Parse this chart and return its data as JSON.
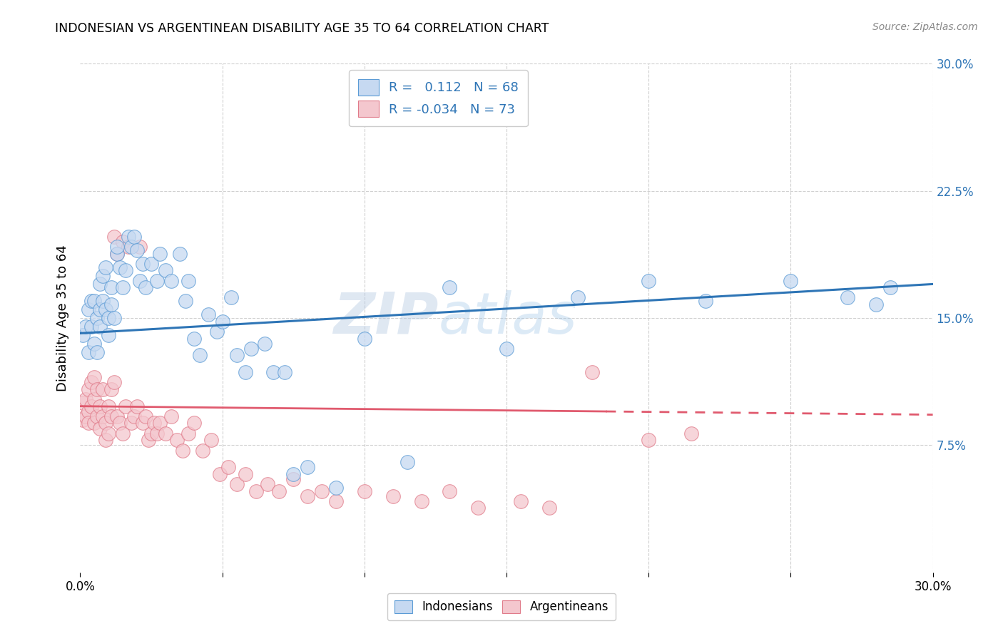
{
  "title": "INDONESIAN VS ARGENTINEAN DISABILITY AGE 35 TO 64 CORRELATION CHART",
  "source": "Source: ZipAtlas.com",
  "ylabel": "Disability Age 35 to 64",
  "xlim": [
    0.0,
    0.3
  ],
  "ylim": [
    0.0,
    0.3
  ],
  "yticks_right": [
    0.075,
    0.15,
    0.225,
    0.3
  ],
  "ytick_labels_right": [
    "7.5%",
    "15.0%",
    "22.5%",
    "30.0%"
  ],
  "watermark": "ZIPatlas",
  "blue_fill": "#c6d9f1",
  "blue_edge": "#5b9bd5",
  "pink_fill": "#f4c7ce",
  "pink_edge": "#e07b8a",
  "blue_line_color": "#2e75b6",
  "pink_line_color": "#e05a6e",
  "indonesian_x": [
    0.001,
    0.002,
    0.003,
    0.003,
    0.004,
    0.004,
    0.005,
    0.005,
    0.006,
    0.006,
    0.007,
    0.007,
    0.007,
    0.008,
    0.008,
    0.009,
    0.009,
    0.01,
    0.01,
    0.011,
    0.011,
    0.012,
    0.013,
    0.013,
    0.014,
    0.015,
    0.016,
    0.017,
    0.018,
    0.019,
    0.02,
    0.021,
    0.022,
    0.023,
    0.025,
    0.027,
    0.028,
    0.03,
    0.032,
    0.035,
    0.037,
    0.038,
    0.04,
    0.042,
    0.045,
    0.048,
    0.05,
    0.053,
    0.055,
    0.058,
    0.06,
    0.065,
    0.068,
    0.072,
    0.075,
    0.08,
    0.09,
    0.1,
    0.115,
    0.13,
    0.15,
    0.175,
    0.2,
    0.22,
    0.25,
    0.27,
    0.28,
    0.285
  ],
  "indonesian_y": [
    0.14,
    0.145,
    0.155,
    0.13,
    0.145,
    0.16,
    0.135,
    0.16,
    0.15,
    0.13,
    0.155,
    0.145,
    0.17,
    0.16,
    0.175,
    0.155,
    0.18,
    0.15,
    0.14,
    0.158,
    0.168,
    0.15,
    0.188,
    0.192,
    0.18,
    0.168,
    0.178,
    0.198,
    0.192,
    0.198,
    0.19,
    0.172,
    0.182,
    0.168,
    0.182,
    0.172,
    0.188,
    0.178,
    0.172,
    0.188,
    0.16,
    0.172,
    0.138,
    0.128,
    0.152,
    0.142,
    0.148,
    0.162,
    0.128,
    0.118,
    0.132,
    0.135,
    0.118,
    0.118,
    0.058,
    0.062,
    0.05,
    0.138,
    0.065,
    0.168,
    0.132,
    0.162,
    0.172,
    0.16,
    0.172,
    0.162,
    0.158,
    0.168
  ],
  "argentinean_x": [
    0.001,
    0.001,
    0.002,
    0.002,
    0.003,
    0.003,
    0.003,
    0.004,
    0.004,
    0.005,
    0.005,
    0.005,
    0.006,
    0.006,
    0.007,
    0.007,
    0.008,
    0.008,
    0.009,
    0.009,
    0.01,
    0.01,
    0.011,
    0.011,
    0.012,
    0.012,
    0.013,
    0.013,
    0.014,
    0.015,
    0.015,
    0.016,
    0.017,
    0.018,
    0.019,
    0.02,
    0.021,
    0.022,
    0.023,
    0.024,
    0.025,
    0.026,
    0.027,
    0.028,
    0.03,
    0.032,
    0.034,
    0.036,
    0.038,
    0.04,
    0.043,
    0.046,
    0.049,
    0.052,
    0.055,
    0.058,
    0.062,
    0.066,
    0.07,
    0.075,
    0.08,
    0.085,
    0.09,
    0.1,
    0.11,
    0.12,
    0.13,
    0.14,
    0.155,
    0.165,
    0.18,
    0.2,
    0.215
  ],
  "argentinean_y": [
    0.1,
    0.09,
    0.092,
    0.102,
    0.108,
    0.095,
    0.088,
    0.098,
    0.112,
    0.088,
    0.102,
    0.115,
    0.092,
    0.108,
    0.098,
    0.085,
    0.092,
    0.108,
    0.078,
    0.088,
    0.098,
    0.082,
    0.092,
    0.108,
    0.112,
    0.198,
    0.188,
    0.092,
    0.088,
    0.082,
    0.195,
    0.098,
    0.192,
    0.088,
    0.092,
    0.098,
    0.192,
    0.088,
    0.092,
    0.078,
    0.082,
    0.088,
    0.082,
    0.088,
    0.082,
    0.092,
    0.078,
    0.072,
    0.082,
    0.088,
    0.072,
    0.078,
    0.058,
    0.062,
    0.052,
    0.058,
    0.048,
    0.052,
    0.048,
    0.055,
    0.045,
    0.048,
    0.042,
    0.048,
    0.045,
    0.042,
    0.048,
    0.038,
    0.042,
    0.038,
    0.118,
    0.078,
    0.082
  ],
  "indo_trend_x0": 0.0,
  "indo_trend_y0": 0.141,
  "indo_trend_x1": 0.3,
  "indo_trend_y1": 0.17,
  "arge_trend_x0": 0.0,
  "arge_trend_y0": 0.098,
  "arge_trend_x1": 0.3,
  "arge_trend_y1": 0.093,
  "arge_dash_split": 0.185
}
